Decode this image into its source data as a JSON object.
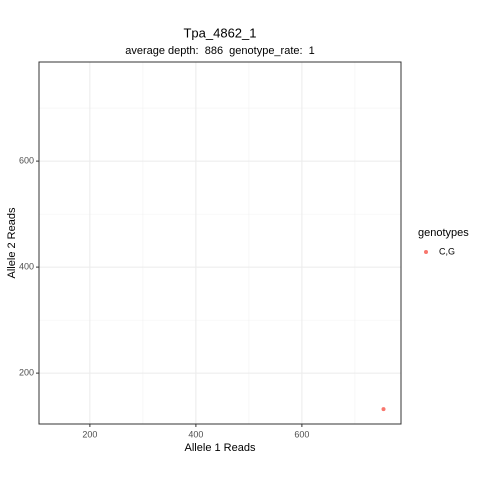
{
  "chart_data": {
    "type": "scatter",
    "title": "Tpa_4862_1",
    "subtitle": "average depth:  886  genotype_rate:  1",
    "x_label": "Allele 1 Reads",
    "y_label": "Allele 2 Reads",
    "legend_title": "genotypes",
    "legend_position": "right",
    "grid": true,
    "series": [
      {
        "name": "C,G",
        "color": "#F8766D",
        "x": [
          754
        ],
        "values": [
          132
        ]
      }
    ],
    "xlim": [
      104,
      787
    ],
    "xticks": [
      200,
      400,
      600
    ],
    "xminorticks": [
      300,
      500,
      700
    ],
    "ylim": [
      104,
      787
    ],
    "yticks": [
      200,
      400,
      600
    ],
    "yminorticks": [
      300,
      500,
      700
    ]
  }
}
